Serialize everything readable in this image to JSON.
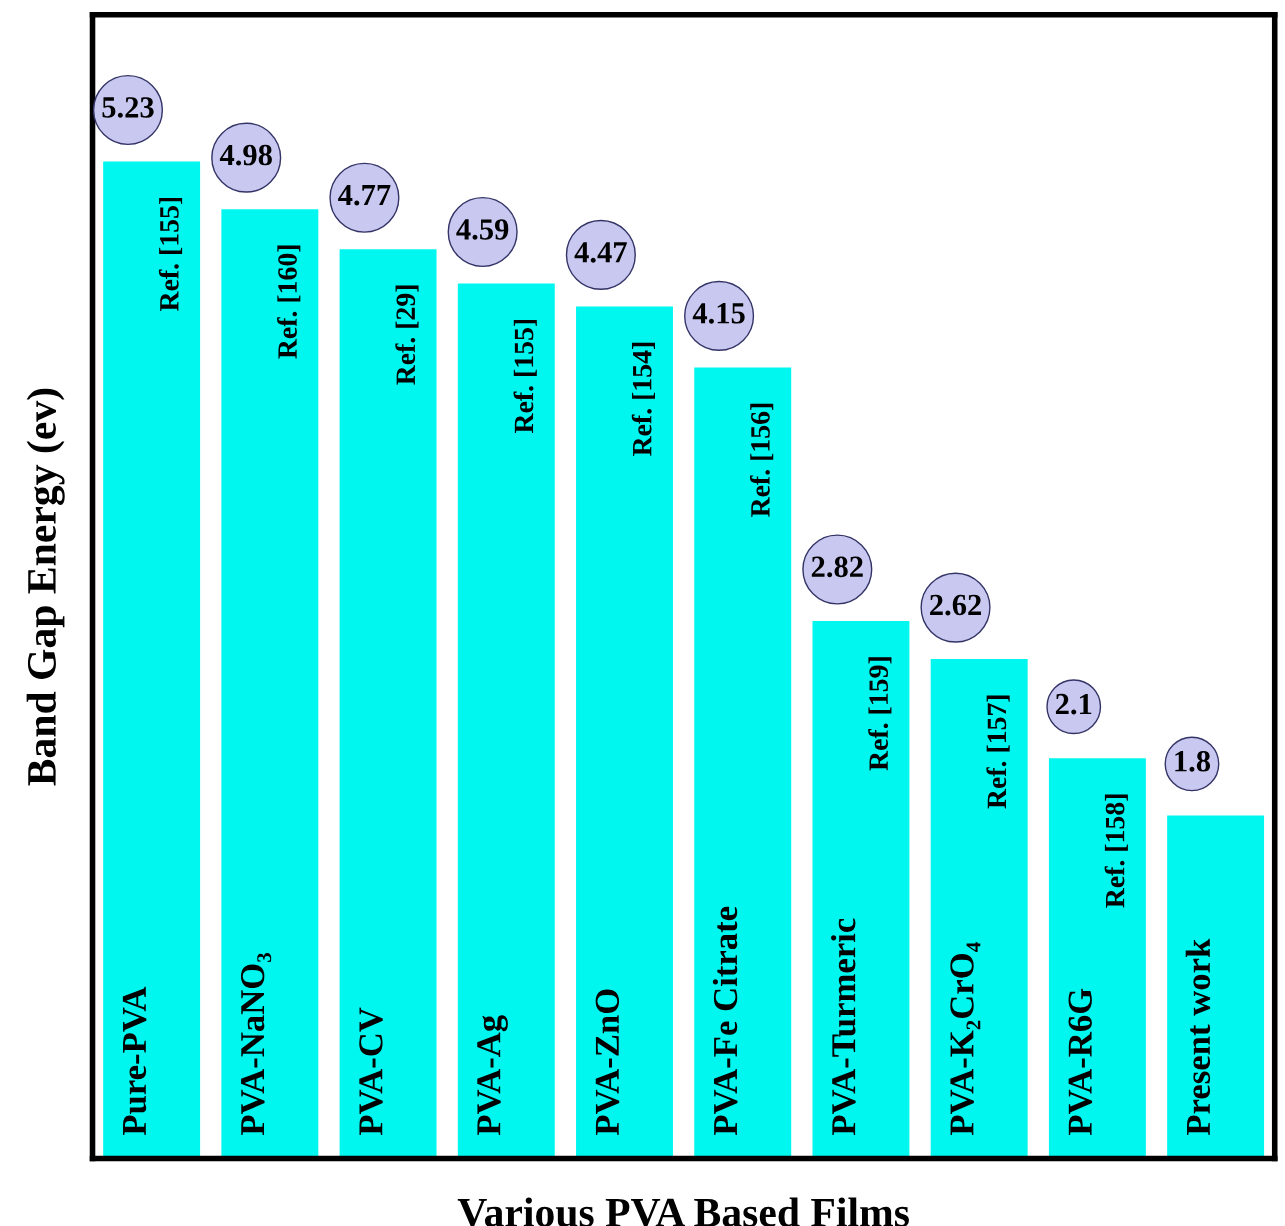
{
  "chart_data": {
    "type": "bar",
    "xlabel": "Various PVA Based Films",
    "ylabel": "Band Gap Energy (ev)",
    "categories": [
      "Pure-PVA",
      "PVA-NaNO₃",
      "PVA-CV",
      "PVA-Ag",
      "PVA-ZnO",
      "PVA-Fe Citrate",
      "PVA-Turmeric",
      "PVA-K₂CrO₄",
      "PVA-R6G",
      "Present work"
    ],
    "values": [
      5.23,
      4.98,
      4.77,
      4.59,
      4.47,
      4.15,
      2.82,
      2.62,
      2.1,
      1.8
    ],
    "color": "#00f7f0",
    "ylim": [
      0,
      6
    ],
    "data_labels": true,
    "annotations": [
      "Ref. [155]",
      "Ref. [160]",
      "Ref. [29]",
      "Ref. [155]",
      "Ref. [154]",
      "Ref. [156]",
      "Ref. [159]",
      "Ref. [157]",
      "Ref. [158]"
    ]
  }
}
